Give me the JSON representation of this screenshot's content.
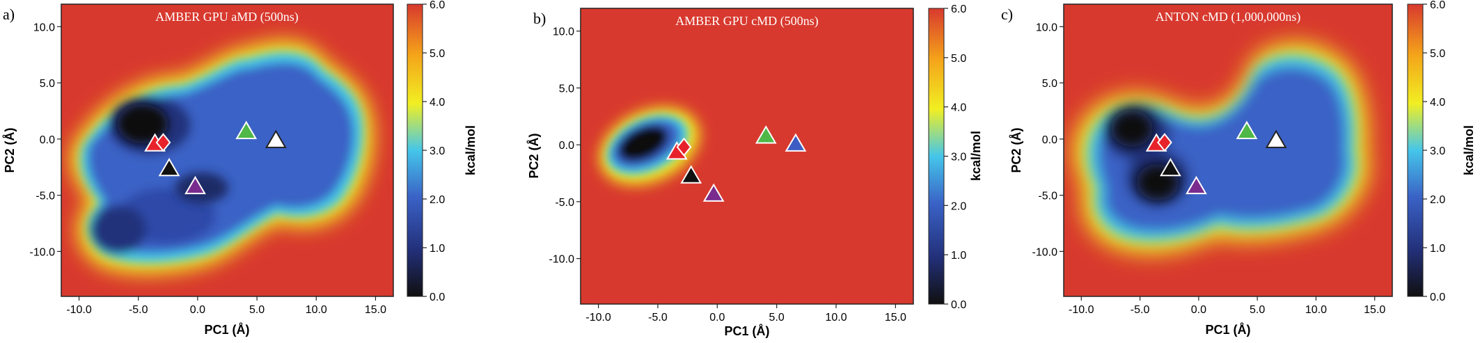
{
  "colorbar": {
    "label": "kcal/mol",
    "ticks": [
      "0.0",
      "1.0",
      "2.0",
      "3.0",
      "4.0",
      "5.0",
      "6.0"
    ],
    "range": [
      0,
      6
    ],
    "stops": [
      "#101010",
      "#23307a",
      "#3a62c6",
      "#45c6ea",
      "#f1ef22",
      "#f4a21a",
      "#d8392e"
    ]
  },
  "chart_data": [
    {
      "type": "heatmap",
      "panel_label": "a)",
      "title": "AMBER GPU aMD (500ns)",
      "xlabel": "PC1 (Å)",
      "ylabel": "PC2 (Å)",
      "xlim": [
        -11.5,
        16.5
      ],
      "ylim": [
        -14,
        12
      ],
      "xticks": [
        "-10.0",
        "-5.0",
        "0.0",
        "5.0",
        "10.0",
        "15.0"
      ],
      "yticks": [
        "10.0",
        "5.0",
        "0.0",
        "-5.0",
        "-10.0"
      ],
      "markers": [
        {
          "shape": "triangle",
          "color": "#e8222a",
          "x": -3.6,
          "y": -0.4
        },
        {
          "shape": "diamond",
          "color": "#e8222a",
          "x": -2.9,
          "y": -0.3
        },
        {
          "shape": "triangle",
          "color": "#111111",
          "x": -2.4,
          "y": -2.6
        },
        {
          "shape": "triangle",
          "color": "#7a2c8e",
          "x": -0.2,
          "y": -4.2
        },
        {
          "shape": "triangle",
          "color": "#4fb848",
          "x": 4.1,
          "y": 0.7
        },
        {
          "shape": "triangle",
          "color": "#ffffff",
          "x": 6.6,
          "y": -0.1
        }
      ]
    },
    {
      "type": "heatmap",
      "panel_label": "b)",
      "title": "AMBER GPU cMD (500ns)",
      "xlabel": "PC1 (Å)",
      "ylabel": "PC2 (Å)",
      "xlim": [
        -11.5,
        16.5
      ],
      "ylim": [
        -14,
        12
      ],
      "xticks": [
        "-10.0",
        "-5.0",
        "0.0",
        "5.0",
        "10.0",
        "15.0"
      ],
      "yticks": [
        "10.0",
        "5.0",
        "0.0",
        "-5.0",
        "-10.0"
      ],
      "markers": [
        {
          "shape": "triangle",
          "color": "#e8222a",
          "x": -3.4,
          "y": -0.6
        },
        {
          "shape": "diamond",
          "color": "#e8222a",
          "x": -2.8,
          "y": -0.2
        },
        {
          "shape": "triangle",
          "color": "#111111",
          "x": -2.2,
          "y": -2.7
        },
        {
          "shape": "triangle",
          "color": "#7a2c8e",
          "x": -0.3,
          "y": -4.3
        },
        {
          "shape": "triangle",
          "color": "#4fb848",
          "x": 4.1,
          "y": 0.8
        },
        {
          "shape": "triangle",
          "color": "#3d5cc4",
          "x": 6.6,
          "y": 0.1
        }
      ]
    },
    {
      "type": "heatmap",
      "panel_label": "c)",
      "title": "ANTON cMD (1,000,000ns)",
      "xlabel": "PC1 (Å)",
      "ylabel": "PC2 (Å)",
      "xlim": [
        -11.5,
        16.5
      ],
      "ylim": [
        -14,
        12
      ],
      "xticks": [
        "-10.0",
        "-5.0",
        "0.0",
        "5.0",
        "10.0",
        "15.0"
      ],
      "yticks": [
        "10.0",
        "5.0",
        "0.0",
        "-5.0",
        "-10.0"
      ],
      "markers": [
        {
          "shape": "triangle",
          "color": "#e8222a",
          "x": -3.6,
          "y": -0.4
        },
        {
          "shape": "diamond",
          "color": "#e8222a",
          "x": -2.9,
          "y": -0.3
        },
        {
          "shape": "triangle",
          "color": "#111111",
          "x": -2.4,
          "y": -2.6
        },
        {
          "shape": "triangle",
          "color": "#7a2c8e",
          "x": -0.2,
          "y": -4.2
        },
        {
          "shape": "triangle",
          "color": "#4fb848",
          "x": 4.1,
          "y": 0.7
        },
        {
          "shape": "triangle",
          "color": "#ffffff",
          "x": 6.6,
          "y": -0.1
        }
      ]
    }
  ]
}
